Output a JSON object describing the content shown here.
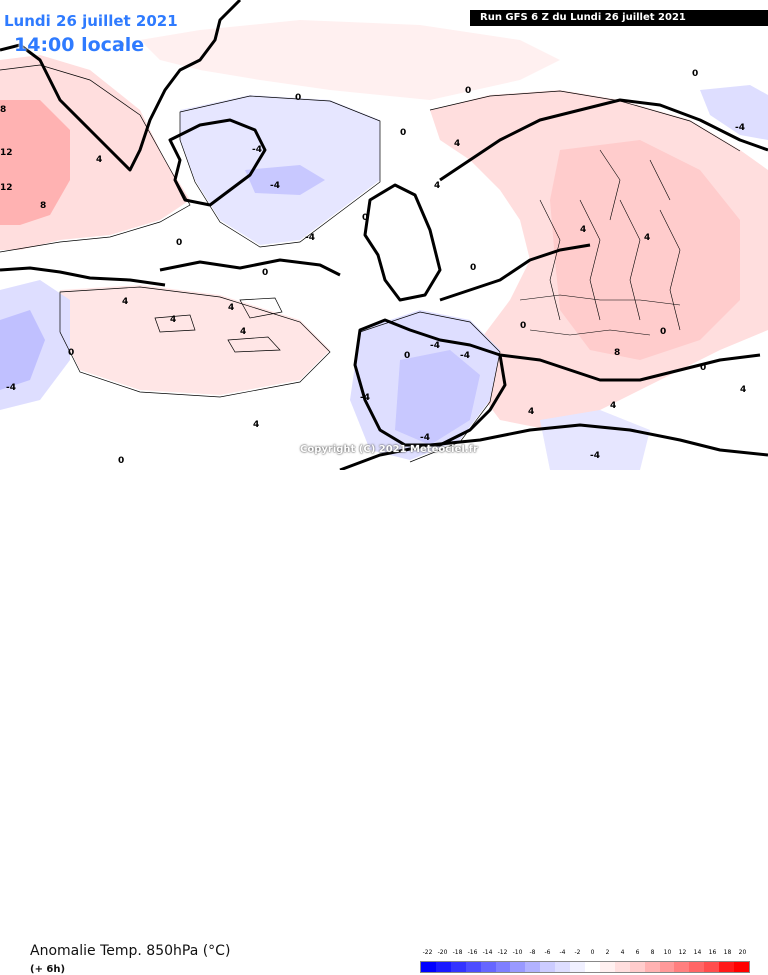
{
  "header": {
    "date_line": "Lundi 26 juillet 2021",
    "time_line": "14:00 locale",
    "run_banner": "Run GFS 6 Z du Lundi 26 juillet 2021"
  },
  "watermark": {
    "copyright": "Copyright (C) 2021 Meteociel.fr"
  },
  "footer": {
    "parameter_title": "Anomalie Temp. 850hPa (°C)",
    "forecast_offset": "(+ 6h)"
  },
  "legend": {
    "ticks": [
      "-22",
      "-20",
      "-18",
      "-16",
      "-14",
      "-12",
      "-10",
      "-8",
      "-6",
      "-4",
      "-2",
      "0",
      "2",
      "4",
      "6",
      "8",
      "10",
      "12",
      "14",
      "16",
      "18",
      "20"
    ],
    "colors": [
      "#0000ff",
      "#1a1aff",
      "#3333ff",
      "#4d4dff",
      "#6666ff",
      "#7f7fff",
      "#9999ff",
      "#b2b2ff",
      "#ccccff",
      "#dedeff",
      "#f0f0ff",
      "#ffffff",
      "#fff0f0",
      "#ffdede",
      "#ffcccc",
      "#ffb2b2",
      "#ff9999",
      "#ff7f7f",
      "#ff6666",
      "#ff4d4d",
      "#ff1a1a",
      "#ff0000"
    ]
  },
  "map": {
    "contour_labels": [
      "0",
      "0",
      "0",
      "0",
      "0",
      "0",
      "0",
      "0",
      "0",
      "0",
      "0",
      "0",
      "0",
      "0",
      "0",
      "-4",
      "-4",
      "-4",
      "-4",
      "-4",
      "-4",
      "-4",
      "-4",
      "-4",
      "-4",
      "4",
      "4",
      "4",
      "4",
      "4",
      "4",
      "4",
      "4",
      "4",
      "4",
      "4",
      "4",
      "4",
      "8",
      "8",
      "8",
      "12",
      "12"
    ]
  }
}
